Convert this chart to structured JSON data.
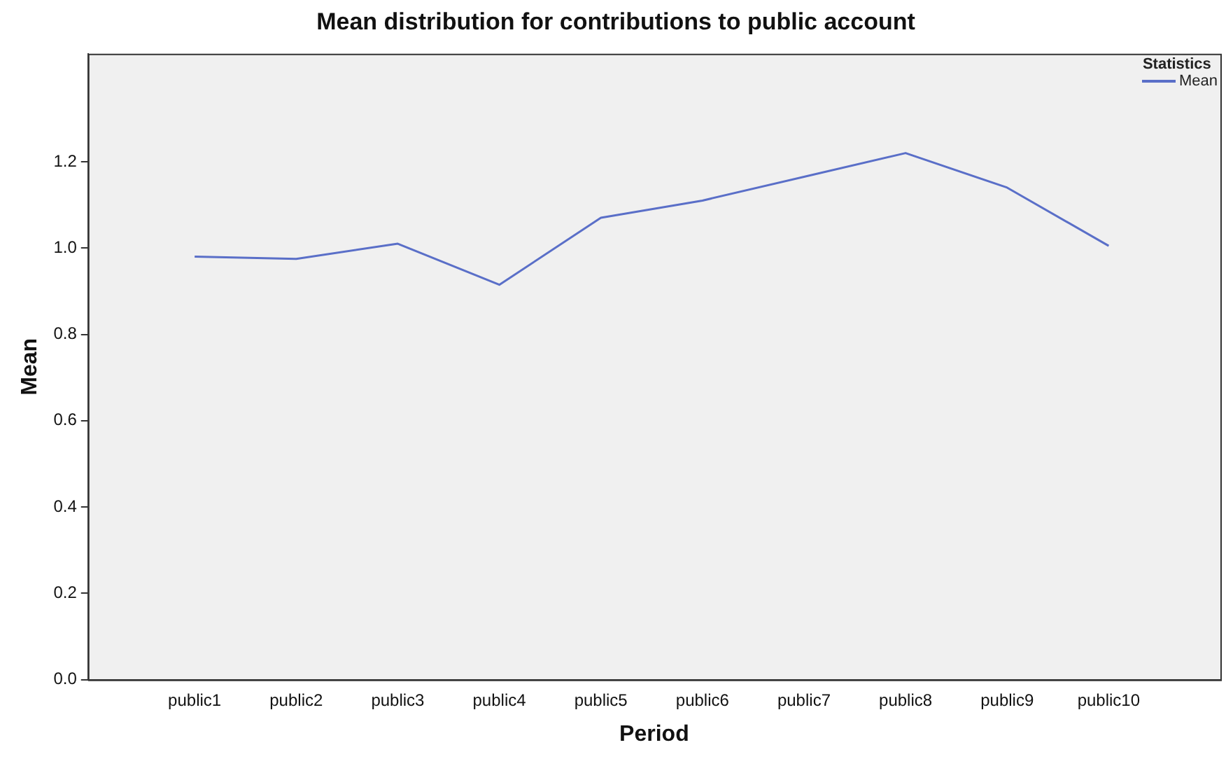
{
  "chart_data": {
    "type": "line",
    "title": "Mean distribution for contributions to public account",
    "xlabel": "Period",
    "ylabel": "Mean",
    "legend_title": "Statistics",
    "categories": [
      "public1",
      "public2",
      "public3",
      "public4",
      "public5",
      "public6",
      "public7",
      "public8",
      "public9",
      "public10"
    ],
    "series": [
      {
        "name": "Mean",
        "color": "#5a6fc8",
        "values": [
          0.98,
          0.975,
          1.01,
          0.915,
          1.07,
          1.11,
          1.165,
          1.22,
          1.14,
          1.005
        ]
      }
    ],
    "ylim": [
      0,
      1.45
    ],
    "yticks": [
      {
        "value": 0,
        "label": "0.0"
      },
      {
        "value": 0.2,
        "label": "0.2"
      },
      {
        "value": 0.4,
        "label": "0.4"
      },
      {
        "value": 0.6,
        "label": "0.6"
      },
      {
        "value": 0.8,
        "label": "0.8"
      },
      {
        "value": 1.0,
        "label": "1.0"
      },
      {
        "value": 1.2,
        "label": "1.2"
      }
    ],
    "grid": false,
    "legend": "top right",
    "marker": "none",
    "line_style": "solid"
  }
}
